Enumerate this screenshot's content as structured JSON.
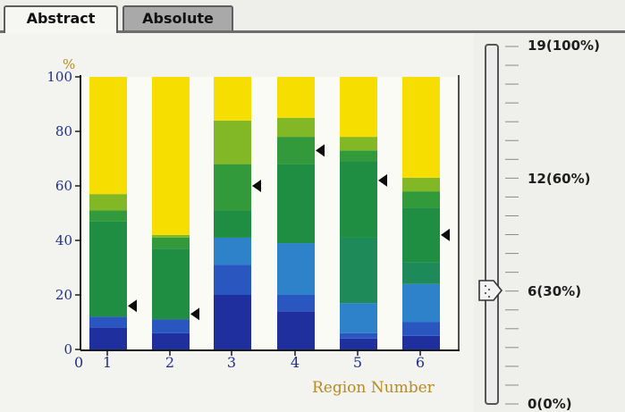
{
  "tabs": [
    {
      "label": "Abstract",
      "active": true
    },
    {
      "label": "Absolute",
      "active": false
    }
  ],
  "chart_data": {
    "type": "bar",
    "stacked": true,
    "title": "",
    "ylabel": "%",
    "xlabel": "Region Number",
    "ylim": [
      0,
      100
    ],
    "yticks": [
      0,
      20,
      40,
      60,
      80,
      100
    ],
    "x_origin_label": "0",
    "categories": [
      "1",
      "2",
      "3",
      "4",
      "5",
      "6"
    ],
    "series": [
      {
        "color": "#1f2f9e",
        "values": [
          8,
          6,
          20,
          14,
          4,
          5
        ]
      },
      {
        "color": "#2a56c0",
        "values": [
          4,
          5,
          11,
          6,
          2,
          5
        ]
      },
      {
        "color": "#2d82c9",
        "values": [
          0,
          0,
          10,
          19,
          11,
          14
        ]
      },
      {
        "color": "#1e8a5a",
        "values": [
          0,
          0,
          0,
          0,
          24,
          8
        ]
      },
      {
        "color": "#1f8d42",
        "values": [
          35,
          26,
          10,
          29,
          28,
          20
        ]
      },
      {
        "color": "#339a3c",
        "values": [
          4,
          4,
          17,
          10,
          4,
          6
        ]
      },
      {
        "color": "#82b826",
        "values": [
          6,
          1,
          16,
          7,
          5,
          5
        ]
      },
      {
        "color": "#f6df00",
        "values": [
          43,
          58,
          16,
          15,
          22,
          37
        ]
      }
    ],
    "markers": [
      16,
      13,
      60,
      73,
      62,
      42
    ],
    "grid": false
  },
  "slider": {
    "labels": [
      "19(100%)",
      "12(60%)",
      "6(30%)",
      "0(0%)"
    ],
    "max": 19,
    "value": 6
  }
}
